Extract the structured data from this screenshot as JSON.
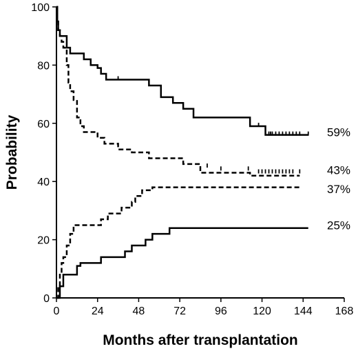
{
  "chart_data": {
    "type": "line",
    "title": "",
    "xlabel": "Months after transplantation",
    "ylabel": "Probability",
    "xlim": [
      0,
      168
    ],
    "ylim": [
      0,
      100
    ],
    "xticks": [
      0,
      24,
      48,
      72,
      96,
      120,
      144,
      168
    ],
    "yticks": [
      0,
      20,
      40,
      60,
      80,
      100
    ],
    "grid": false,
    "legend": "none",
    "series": [
      {
        "style": "solid",
        "end_label": "59%",
        "points": [
          [
            0,
            100
          ],
          [
            0.5,
            95
          ],
          [
            1,
            92
          ],
          [
            2,
            90
          ],
          [
            5,
            90
          ],
          [
            6,
            86
          ],
          [
            8,
            84
          ],
          [
            15,
            84
          ],
          [
            16,
            82
          ],
          [
            20,
            80
          ],
          [
            24,
            79
          ],
          [
            26,
            77
          ],
          [
            29,
            75
          ],
          [
            53,
            75
          ],
          [
            54,
            73
          ],
          [
            60,
            73
          ],
          [
            61,
            69
          ],
          [
            66,
            69
          ],
          [
            68,
            67
          ],
          [
            72,
            67
          ],
          [
            74,
            65
          ],
          [
            78,
            65
          ],
          [
            80,
            62
          ],
          [
            96,
            62
          ],
          [
            110,
            62
          ],
          [
            113,
            59
          ],
          [
            120,
            59
          ],
          [
            122,
            56
          ],
          [
            147,
            56
          ]
        ],
        "censor_marks": [
          [
            36,
            75
          ],
          [
            118,
            59
          ],
          [
            124,
            56
          ],
          [
            125,
            56
          ],
          [
            126,
            56
          ],
          [
            128,
            56
          ],
          [
            130,
            56
          ],
          [
            132,
            56
          ],
          [
            134,
            56
          ],
          [
            136,
            56
          ],
          [
            138,
            56
          ],
          [
            140,
            56
          ],
          [
            142,
            56
          ],
          [
            147,
            56
          ]
        ]
      },
      {
        "style": "dashed",
        "end_label": "43%",
        "points": [
          [
            0,
            100
          ],
          [
            0.5,
            95
          ],
          [
            1,
            92
          ],
          [
            2,
            90
          ],
          [
            3,
            88
          ],
          [
            4,
            86
          ],
          [
            5,
            85
          ],
          [
            6,
            80
          ],
          [
            7,
            74
          ],
          [
            8,
            71
          ],
          [
            10,
            68
          ],
          [
            12,
            62
          ],
          [
            14,
            59
          ],
          [
            16,
            57
          ],
          [
            22,
            57
          ],
          [
            24,
            55
          ],
          [
            28,
            53
          ],
          [
            34,
            53
          ],
          [
            36,
            51
          ],
          [
            42,
            51
          ],
          [
            44,
            50
          ],
          [
            50,
            50
          ],
          [
            54,
            48
          ],
          [
            60,
            48
          ],
          [
            70,
            48
          ],
          [
            74,
            46
          ],
          [
            80,
            46
          ],
          [
            84,
            43
          ],
          [
            100,
            43
          ],
          [
            110,
            43
          ],
          [
            113,
            42
          ],
          [
            142,
            42
          ]
        ],
        "censor_marks": [
          [
            88,
            45
          ],
          [
            96,
            44
          ],
          [
            112,
            44
          ],
          [
            118,
            43
          ],
          [
            120,
            43
          ],
          [
            122,
            43
          ],
          [
            124,
            43
          ],
          [
            126,
            43
          ],
          [
            128,
            43
          ],
          [
            130,
            43
          ],
          [
            132,
            43
          ],
          [
            134,
            43
          ],
          [
            136,
            43
          ],
          [
            138,
            43
          ],
          [
            142,
            43
          ]
        ]
      },
      {
        "style": "dashed",
        "end_label": "37%",
        "points": [
          [
            0,
            0
          ],
          [
            1,
            4
          ],
          [
            2,
            8
          ],
          [
            3,
            12
          ],
          [
            4,
            14
          ],
          [
            6,
            18
          ],
          [
            8,
            22
          ],
          [
            10,
            25
          ],
          [
            24,
            25
          ],
          [
            26,
            27
          ],
          [
            30,
            29
          ],
          [
            36,
            29
          ],
          [
            38,
            31
          ],
          [
            42,
            31
          ],
          [
            44,
            33
          ],
          [
            46,
            35
          ],
          [
            50,
            37
          ],
          [
            56,
            38
          ],
          [
            90,
            38
          ],
          [
            142,
            38
          ]
        ],
        "censor_marks": []
      },
      {
        "style": "solid",
        "end_label": "25%",
        "points": [
          [
            0,
            0
          ],
          [
            2,
            4
          ],
          [
            4,
            8
          ],
          [
            10,
            8
          ],
          [
            12,
            11
          ],
          [
            14,
            12
          ],
          [
            24,
            12
          ],
          [
            26,
            14
          ],
          [
            36,
            14
          ],
          [
            40,
            16
          ],
          [
            44,
            18
          ],
          [
            48,
            18
          ],
          [
            52,
            20
          ],
          [
            56,
            22
          ],
          [
            62,
            22
          ],
          [
            66,
            24
          ],
          [
            72,
            24
          ],
          [
            96,
            24
          ],
          [
            147,
            24
          ]
        ],
        "censor_marks": []
      }
    ]
  }
}
